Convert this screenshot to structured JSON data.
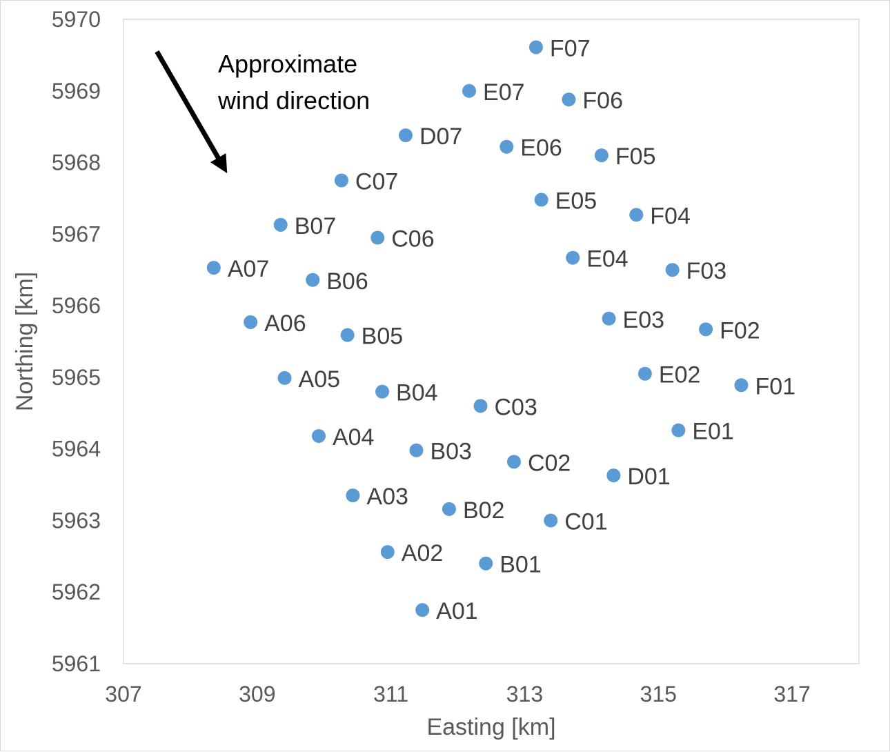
{
  "chart_data": {
    "type": "scatter",
    "xlabel": "Easting [km]",
    "ylabel": "Northing [km]",
    "xlim": [
      307,
      318
    ],
    "ylim": [
      5961,
      5970
    ],
    "xticks": [
      307,
      309,
      311,
      313,
      315,
      317
    ],
    "yticks": [
      5961,
      5962,
      5963,
      5964,
      5965,
      5966,
      5967,
      5968,
      5969,
      5970
    ],
    "grid": false,
    "marker_color": "#5b9bd5",
    "annotation": {
      "text_lines": [
        "Approximate",
        "wind direction"
      ],
      "arrow_from": [
        307.5,
        5969.55
      ],
      "arrow_to": [
        308.55,
        5967.85
      ]
    },
    "points": [
      {
        "label": "A01",
        "x": 311.47,
        "y": 5961.75
      },
      {
        "label": "A02",
        "x": 310.95,
        "y": 5962.56
      },
      {
        "label": "A03",
        "x": 310.43,
        "y": 5963.35
      },
      {
        "label": "A04",
        "x": 309.92,
        "y": 5964.18
      },
      {
        "label": "A05",
        "x": 309.41,
        "y": 5964.99
      },
      {
        "label": "A06",
        "x": 308.9,
        "y": 5965.77
      },
      {
        "label": "A07",
        "x": 308.35,
        "y": 5966.53
      },
      {
        "label": "B01",
        "x": 312.42,
        "y": 5962.4
      },
      {
        "label": "B02",
        "x": 311.87,
        "y": 5963.16
      },
      {
        "label": "B03",
        "x": 311.38,
        "y": 5963.98
      },
      {
        "label": "B04",
        "x": 310.87,
        "y": 5964.8
      },
      {
        "label": "B05",
        "x": 310.35,
        "y": 5965.59
      },
      {
        "label": "B06",
        "x": 309.83,
        "y": 5966.36
      },
      {
        "label": "B07",
        "x": 309.35,
        "y": 5967.13
      },
      {
        "label": "C01",
        "x": 313.39,
        "y": 5963.0
      },
      {
        "label": "C02",
        "x": 312.84,
        "y": 5963.82
      },
      {
        "label": "C03",
        "x": 312.34,
        "y": 5964.6
      },
      {
        "label": "C06",
        "x": 310.8,
        "y": 5966.95
      },
      {
        "label": "C07",
        "x": 310.26,
        "y": 5967.75
      },
      {
        "label": "D01",
        "x": 314.33,
        "y": 5963.63
      },
      {
        "label": "D07",
        "x": 311.22,
        "y": 5968.38
      },
      {
        "label": "E01",
        "x": 315.3,
        "y": 5964.26
      },
      {
        "label": "E02",
        "x": 314.8,
        "y": 5965.05
      },
      {
        "label": "E03",
        "x": 314.26,
        "y": 5965.82
      },
      {
        "label": "E04",
        "x": 313.72,
        "y": 5966.67
      },
      {
        "label": "E05",
        "x": 313.25,
        "y": 5967.48
      },
      {
        "label": "E06",
        "x": 312.73,
        "y": 5968.22
      },
      {
        "label": "E07",
        "x": 312.17,
        "y": 5969.0
      },
      {
        "label": "F01",
        "x": 316.24,
        "y": 5964.89
      },
      {
        "label": "F02",
        "x": 315.71,
        "y": 5965.67
      },
      {
        "label": "F03",
        "x": 315.21,
        "y": 5966.5
      },
      {
        "label": "F04",
        "x": 314.67,
        "y": 5967.27
      },
      {
        "label": "F05",
        "x": 314.15,
        "y": 5968.1
      },
      {
        "label": "F06",
        "x": 313.66,
        "y": 5968.88
      },
      {
        "label": "F07",
        "x": 313.17,
        "y": 5969.61
      }
    ]
  }
}
